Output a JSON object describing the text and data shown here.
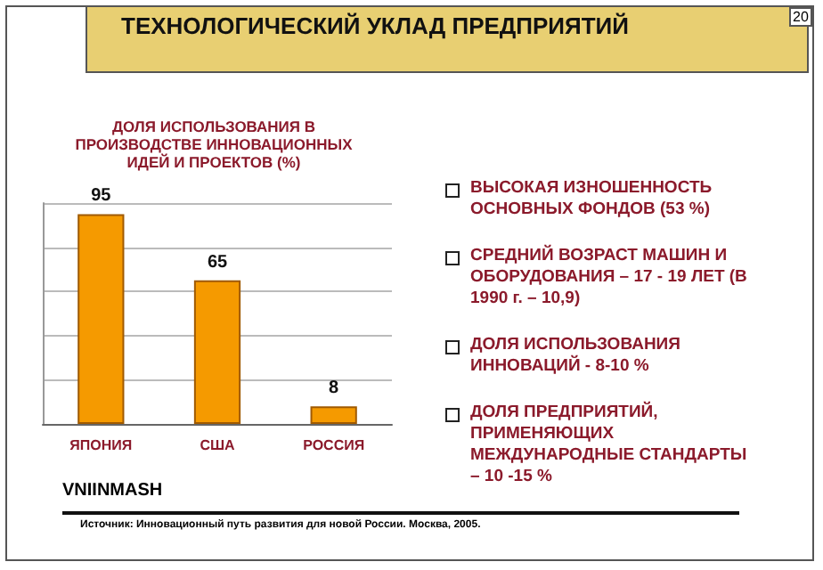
{
  "chart_data": {
    "type": "bar",
    "title": "ТЕХНОЛОГИЧЕСКИЙ УКЛАД ПРЕДПРИЯТИЙ",
    "subtitle": "ДОЛЯ ИСПОЛЬЗОВАНИЯ В ПРОИЗВОДСТВЕ ИННОВАЦИОННЫХ ИДЕЙ И ПРОЕКТОВ (%)",
    "categories": [
      "ЯПОНИЯ",
      "США",
      "РОССИЯ"
    ],
    "values": [
      95,
      65,
      8
    ],
    "color": "#f59a00",
    "data_labels": true,
    "grid": "y",
    "annotations": [
      "20",
      "ВЫСОКАЯ ИЗНОШЕННОСТЬ ОСНОВНЫХ ФОНДОВ (53 %)",
      "СРЕДНИЙ ВОЗРАСТ МАШИН И ОБОРУДОВАНИЯ – 17 - 19 ЛЕТ (В 1990 г.  – 10,9)",
      "ДОЛЯ ИСПОЛЬЗОВАНИЯ ИННОВАЦИЙ - 8-10 %",
      "ДОЛЯ ПРЕДПРИЯТИЙ, ПРИМЕНЯЮЩИХ МЕЖДУНАРОДНЫЕ СТАНДАРТЫ – 10 -15 %",
      "VNIINMASH",
      "Источник: Инновационный путь развития для новой России. Москва, 2005."
    ]
  }
}
